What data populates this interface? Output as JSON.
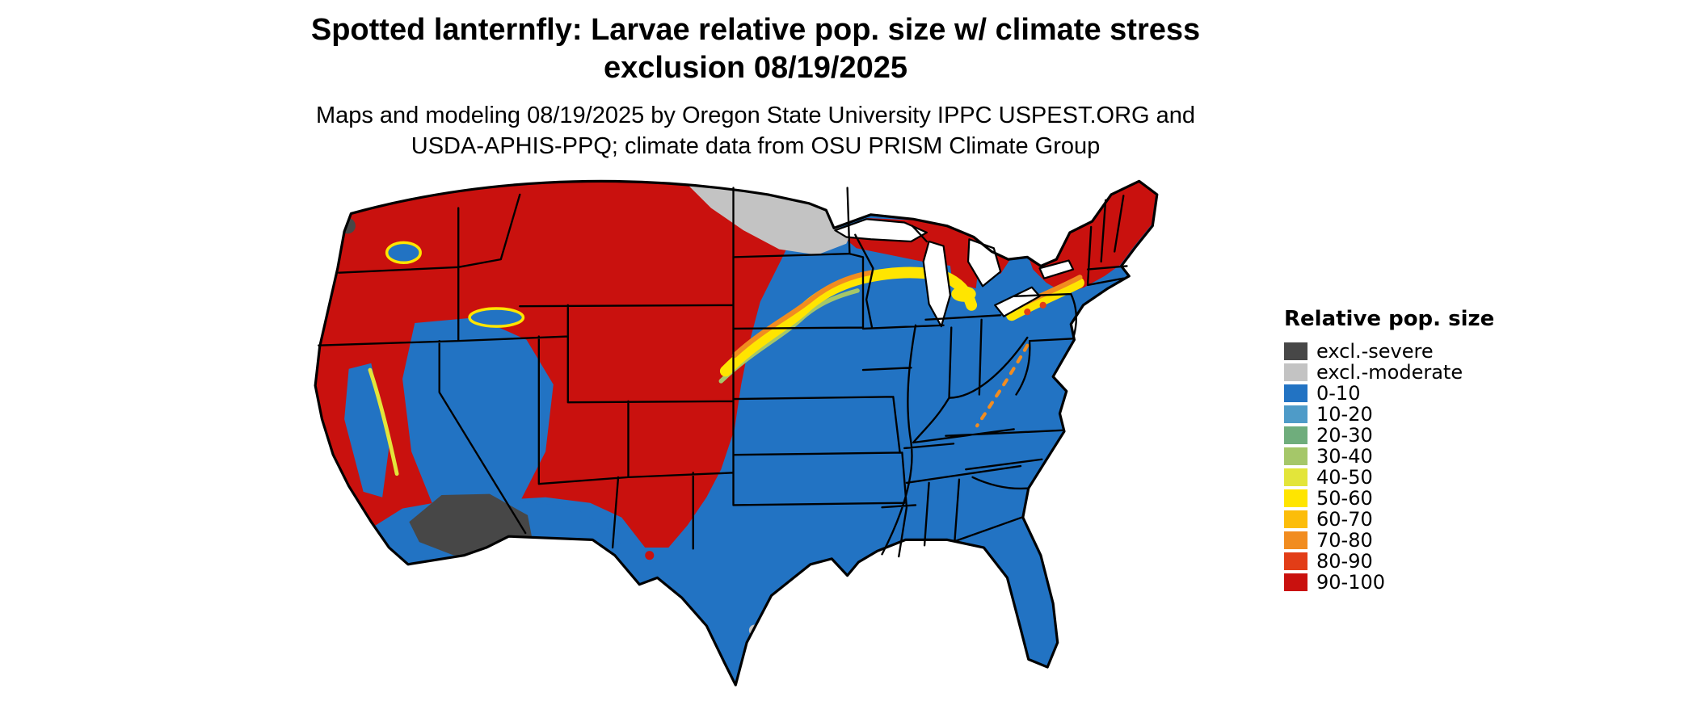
{
  "title": {
    "line1": "Spotted lanternfly: Larvae relative pop. size w/ climate stress",
    "line2": "exclusion 08/19/2025"
  },
  "subtitle": {
    "line1": "Maps and modeling 08/19/2025 by Oregon State University IPPC USPEST.ORG and",
    "line2": "USDA-APHIS-PPQ; climate data from OSU PRISM Climate Group"
  },
  "legend": {
    "title": "Relative pop. size",
    "items": [
      {
        "label": "excl.-severe",
        "colorKey": "excl_severe"
      },
      {
        "label": "excl.-moderate",
        "colorKey": "excl_moderate"
      },
      {
        "label": "0-10",
        "colorKey": "p0_10"
      },
      {
        "label": "10-20",
        "colorKey": "p10_20"
      },
      {
        "label": "20-30",
        "colorKey": "p20_30"
      },
      {
        "label": "30-40",
        "colorKey": "p30_40"
      },
      {
        "label": "40-50",
        "colorKey": "p40_50"
      },
      {
        "label": "50-60",
        "colorKey": "p50_60"
      },
      {
        "label": "60-70",
        "colorKey": "p60_70"
      },
      {
        "label": "70-80",
        "colorKey": "p70_80"
      },
      {
        "label": "80-90",
        "colorKey": "p80_90"
      },
      {
        "label": "90-100",
        "colorKey": "p90_100"
      }
    ]
  },
  "palette": {
    "excl_severe": "#474747",
    "excl_moderate": "#c3c3c3",
    "p0_10": "#2273c3",
    "p10_20": "#4e9bc8",
    "p20_30": "#6fad7c",
    "p30_40": "#a5c769",
    "p40_50": "#e3e53a",
    "p50_60": "#ffe500",
    "p60_70": "#fcbd0a",
    "p70_80": "#f18c20",
    "p80_90": "#e23d17",
    "p90_100": "#c9110e",
    "water": "#ffffff",
    "border": "#000000"
  }
}
